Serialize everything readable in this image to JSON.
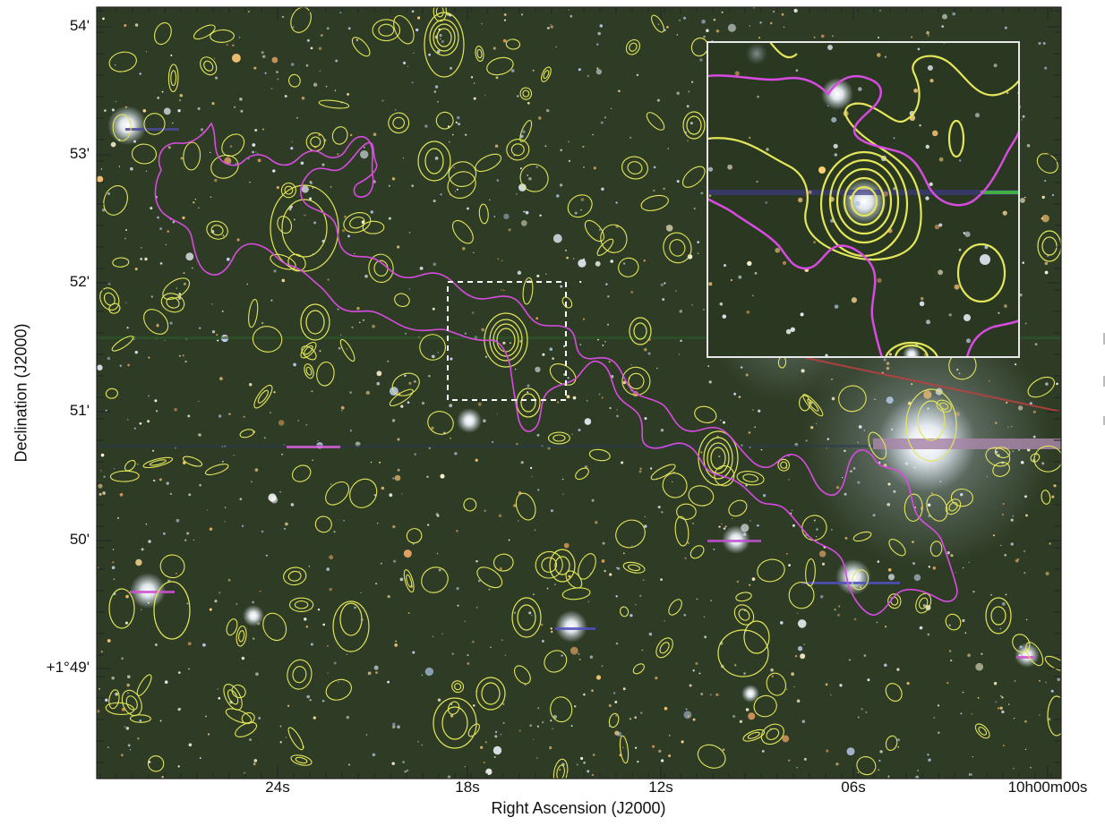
{
  "figure": {
    "x_axis_title": "Right Ascension (J2000)",
    "y_axis_title": "Declination (J2000)",
    "x_ticks": [
      "24s",
      "18s",
      "12s",
      "06s",
      "10h00m00s"
    ],
    "y_ticks": [
      "54'",
      "53'",
      "52'",
      "51'",
      "50'",
      "+1°49'"
    ]
  },
  "colors": {
    "sky_background": "#2c3a22",
    "magenta_contour": "#d84be0",
    "yellow_contour": "#e4e65a",
    "inset_border": "#e8e8e8",
    "highlight_box": "#ffffff"
  },
  "overlays": {
    "inset_panel": "zoom-inset",
    "dashed_box": "selection-box"
  }
}
